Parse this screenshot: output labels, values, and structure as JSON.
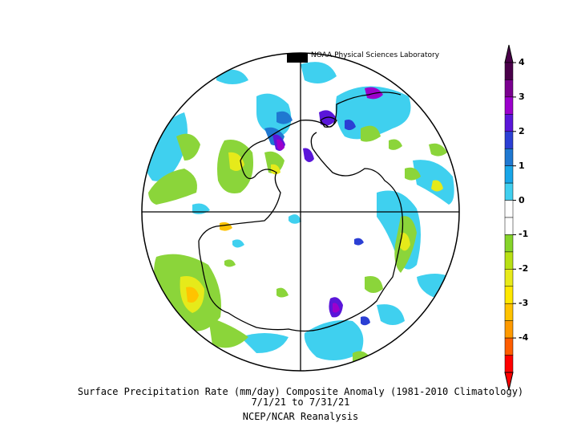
{
  "credit": "NOAA Physical Sciences Laboratory",
  "caption": {
    "line1": "Surface Precipitation Rate (mm/day) Composite Anomaly (1981-2010 Climatology)",
    "line2": "7/1/21  to 7/31/21",
    "line3": "NCEP/NCAR Reanalysis"
  },
  "colorbar": {
    "ticks": [
      "4",
      "3",
      "2",
      "1",
      "0",
      "-1",
      "-2",
      "-3",
      "-4"
    ],
    "colors": [
      "#4a004a",
      "#7a008f",
      "#9b00cc",
      "#5a16d9",
      "#2b3fd4",
      "#1f78d1",
      "#18a6e8",
      "#40cfef",
      "#ffffff",
      "#ffffff",
      "#86d42a",
      "#b8e014",
      "#e8ea1a",
      "#ffe800",
      "#ffc300",
      "#ff9a00",
      "#ff5d00",
      "#ff0000"
    ]
  }
}
